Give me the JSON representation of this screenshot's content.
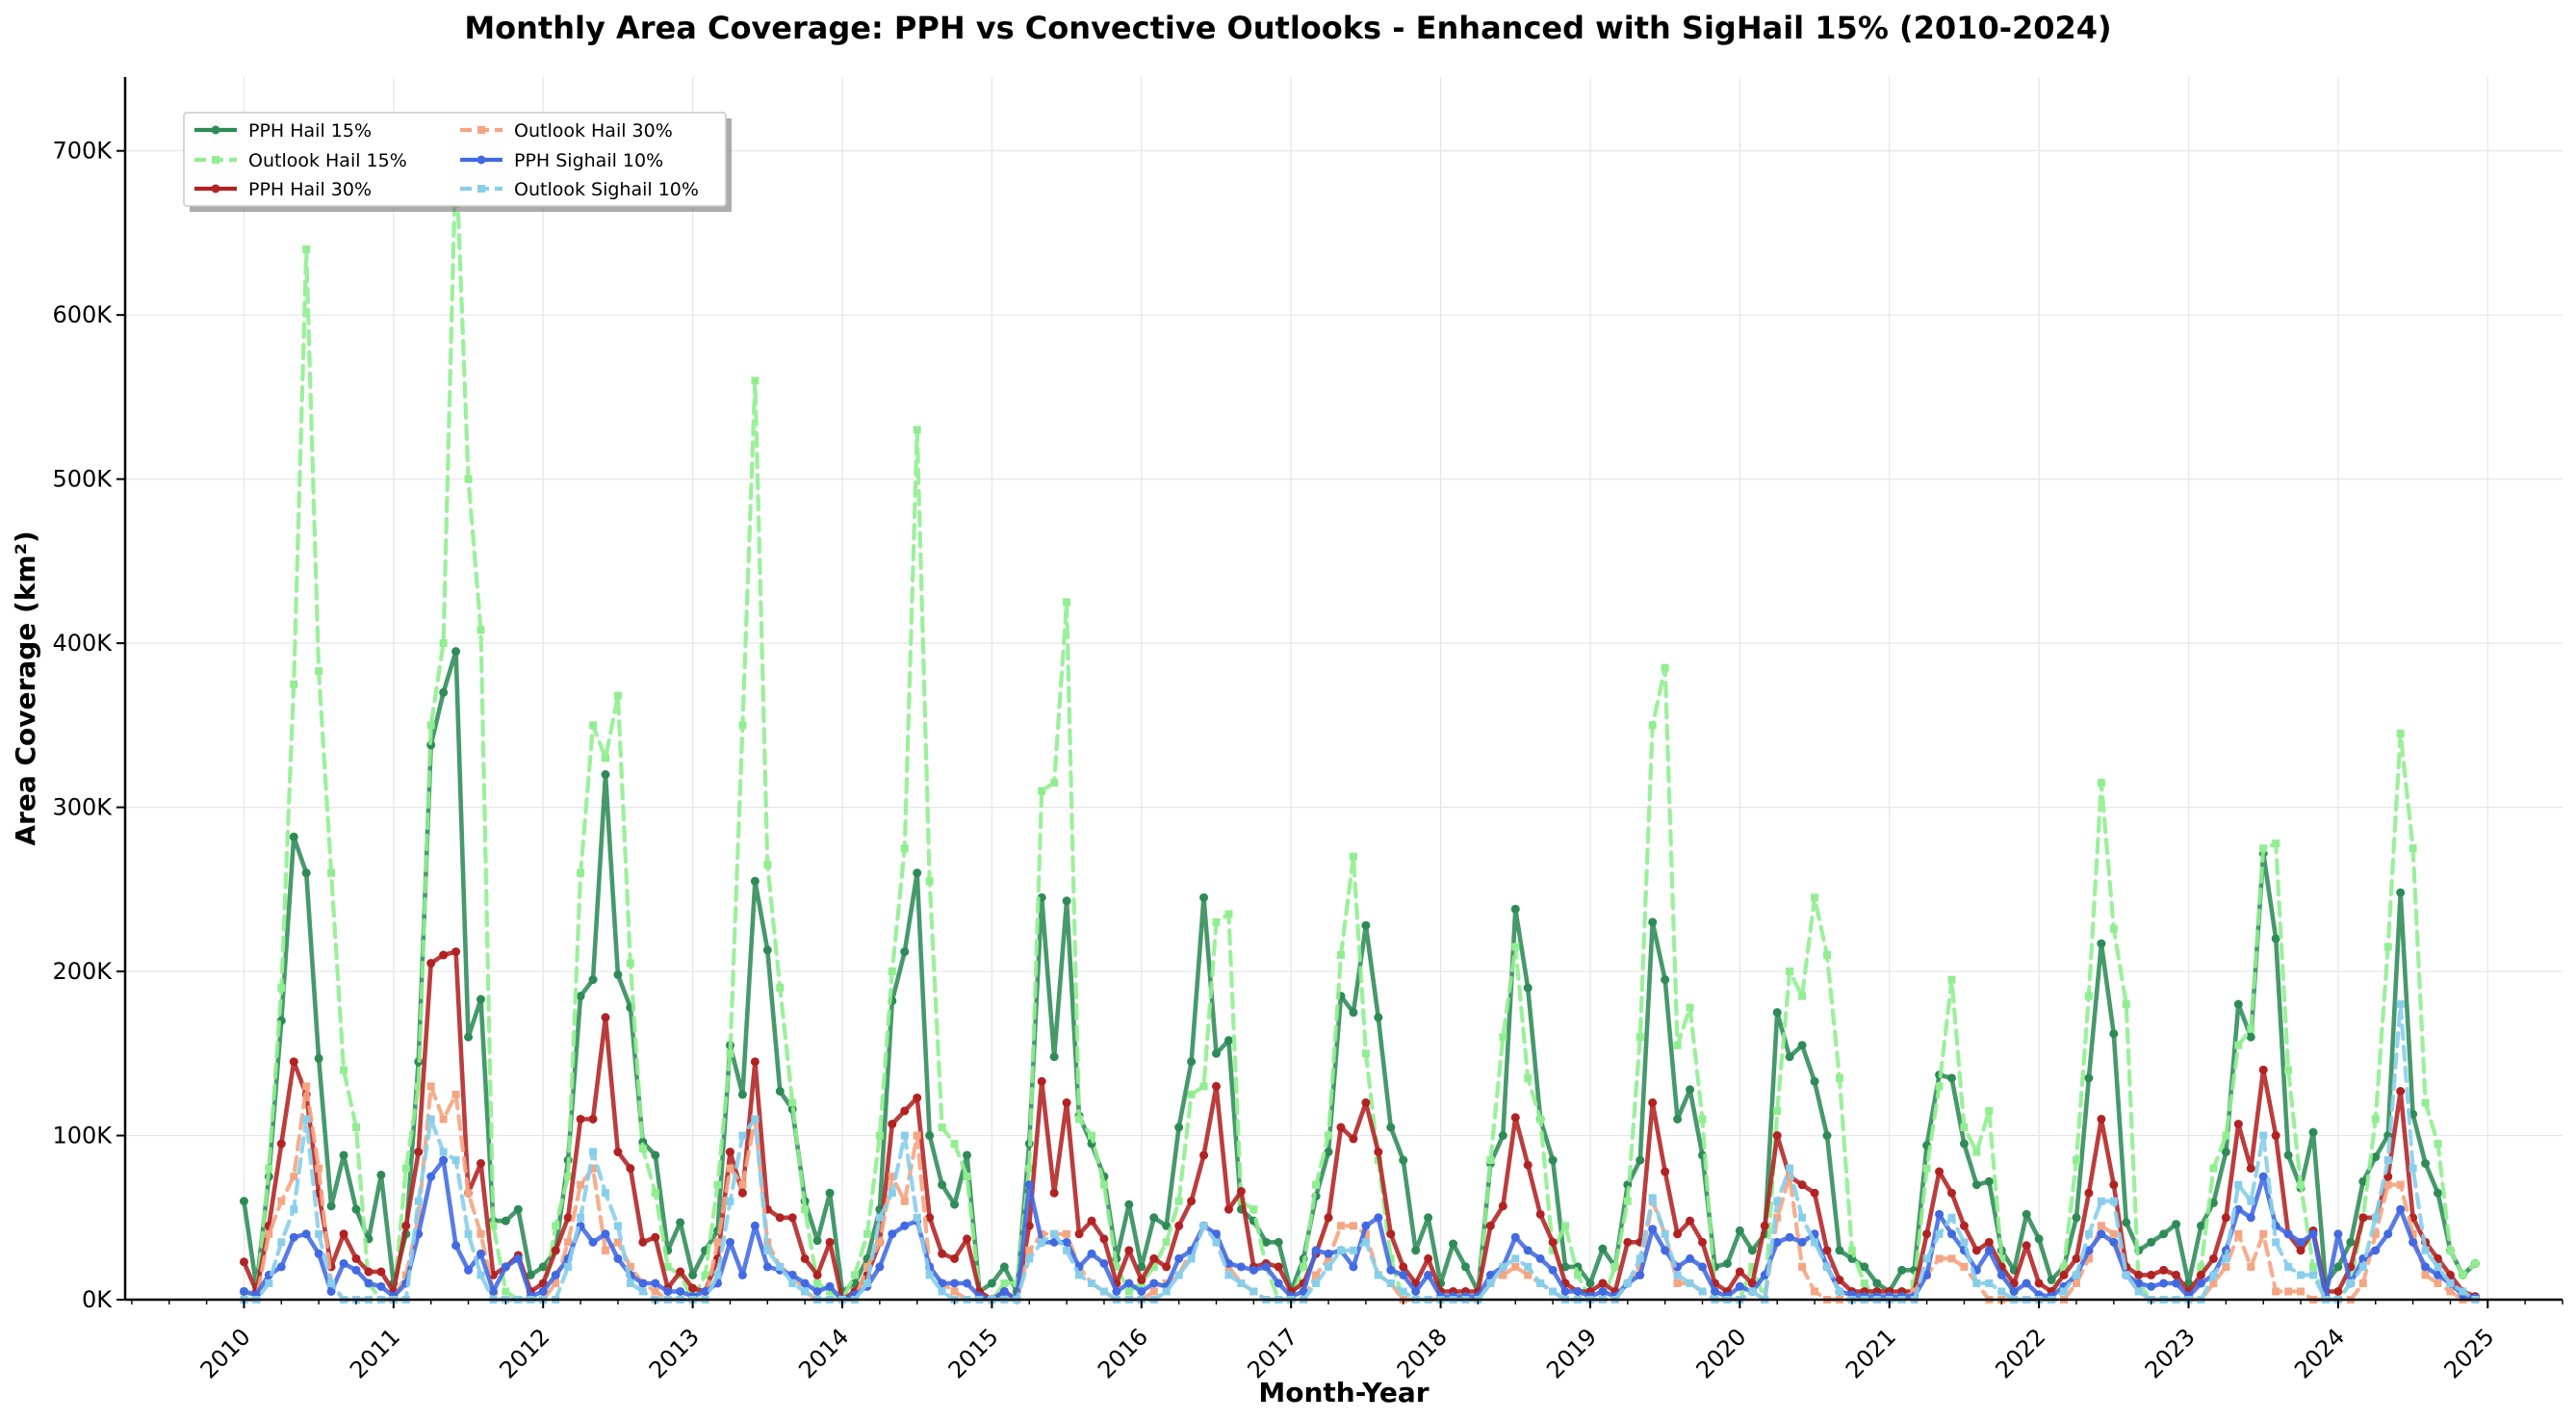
{
  "chart_data": {
    "type": "line",
    "title": "Monthly Area Coverage: PPH vs Convective Outlooks - Enhanced with SigHail 15% (2010-2024)",
    "xlabel": "Month-Year",
    "ylabel": "Area Coverage (km²)",
    "x_tick_labels": [
      "2010",
      "2011",
      "2012",
      "2013",
      "2014",
      "2015",
      "2016",
      "2017",
      "2018",
      "2019",
      "2020",
      "2021",
      "2022",
      "2023",
      "2024",
      "2025"
    ],
    "y_tick_labels": [
      "0K",
      "100K",
      "200K",
      "300K",
      "400K",
      "500K",
      "600K",
      "700K"
    ],
    "y_ticks": [
      0,
      100000,
      200000,
      300000,
      400000,
      500000,
      600000,
      700000
    ],
    "xlim": [
      "2009-03-15",
      "2025-07-01"
    ],
    "ylim": [
      0,
      745000
    ],
    "grid": true,
    "legend_position": "upper-left",
    "x_start": "2010-01",
    "x_step": "month",
    "series": [
      {
        "name": "PPH Hail 15%",
        "color": "#2e8b57",
        "style": "solid",
        "marker": "circle",
        "values": [
          60000,
          8000,
          75000,
          170000,
          282000,
          260000,
          147000,
          57000,
          88000,
          55000,
          37000,
          76000,
          10000,
          40000,
          145000,
          338000,
          370000,
          395000,
          160000,
          183000,
          48000,
          48000,
          55000,
          15000,
          20000,
          30000,
          85000,
          185000,
          195000,
          320000,
          198000,
          178000,
          96000,
          88000,
          30000,
          47000,
          15000,
          30000,
          42000,
          155000,
          125000,
          255000,
          213000,
          127000,
          116000,
          60000,
          36000,
          65000,
          5000,
          10000,
          25000,
          55000,
          182000,
          212000,
          260000,
          100000,
          70000,
          58000,
          88000,
          5000,
          10000,
          20000,
          5000,
          95000,
          245000,
          148000,
          243000,
          112000,
          95000,
          75000,
          25000,
          58000,
          20000,
          50000,
          45000,
          105000,
          145000,
          245000,
          150000,
          158000,
          55000,
          48000,
          35000,
          35000,
          5000,
          25000,
          63000,
          90000,
          185000,
          175000,
          228000,
          172000,
          105000,
          85000,
          30000,
          50000,
          10000,
          34000,
          20000,
          5000,
          83000,
          100000,
          238000,
          190000,
          110000,
          85000,
          20000,
          20000,
          10000,
          31000,
          20000,
          70000,
          85000,
          230000,
          195000,
          110000,
          128000,
          88000,
          20000,
          22000,
          42000,
          30000,
          40000,
          175000,
          148000,
          155000,
          133000,
          100000,
          30000,
          25000,
          20000,
          10000,
          5000,
          18000,
          18000,
          94000,
          137000,
          135000,
          95000,
          70000,
          72000,
          30000,
          18000,
          52000,
          37000,
          12000,
          20000,
          50000,
          135000,
          217000,
          162000,
          47000,
          30000,
          35000,
          40000,
          46000,
          10000,
          45000,
          59000,
          90000,
          180000,
          160000,
          272000,
          220000,
          88000,
          68000,
          102000,
          10000,
          20000,
          35000,
          72000,
          87000,
          100000,
          248000,
          113000,
          83000,
          65000,
          30000,
          15000,
          22000
        ]
      },
      {
        "name": "Outlook Hail 15%",
        "color": "#90ee90",
        "style": "dashed",
        "marker": "square",
        "values": [
          5000,
          2000,
          80000,
          190000,
          375000,
          640000,
          383000,
          260000,
          140000,
          105000,
          10000,
          0,
          0,
          80000,
          130000,
          350000,
          400000,
          700000,
          500000,
          408000,
          45000,
          5000,
          0,
          0,
          0,
          45000,
          75000,
          260000,
          350000,
          330000,
          368000,
          205000,
          92000,
          65000,
          20000,
          15000,
          0,
          15000,
          70000,
          150000,
          350000,
          560000,
          265000,
          190000,
          120000,
          55000,
          10000,
          5000,
          0,
          15000,
          40000,
          100000,
          200000,
          275000,
          530000,
          255000,
          105000,
          95000,
          75000,
          5000,
          0,
          10000,
          10000,
          80000,
          310000,
          315000,
          425000,
          110000,
          100000,
          70000,
          20000,
          5000,
          10000,
          20000,
          35000,
          60000,
          125000,
          130000,
          230000,
          235000,
          60000,
          55000,
          20000,
          0,
          0,
          20000,
          70000,
          100000,
          210000,
          270000,
          150000,
          85000,
          25000,
          0,
          0,
          0,
          0,
          0,
          0,
          0,
          85000,
          160000,
          215000,
          135000,
          110000,
          30000,
          45000,
          15000,
          0,
          0,
          20000,
          60000,
          160000,
          350000,
          385000,
          155000,
          178000,
          110000,
          5000,
          0,
          0,
          20000,
          0,
          115000,
          200000,
          185000,
          245000,
          210000,
          135000,
          30000,
          10000,
          0,
          0,
          0,
          10000,
          80000,
          130000,
          195000,
          105000,
          90000,
          115000,
          25000,
          0,
          0,
          0,
          0,
          20000,
          85000,
          185000,
          315000,
          226000,
          180000,
          10000,
          0,
          0,
          0,
          0,
          20000,
          80000,
          100000,
          155000,
          165000,
          275000,
          278000,
          140000,
          70000,
          20000,
          0,
          0,
          10000,
          50000,
          110000,
          215000,
          345000,
          275000,
          120000,
          95000,
          30000,
          15000,
          22000
        ]
      },
      {
        "name": "PPH Hail 30%",
        "color": "#b22222",
        "style": "solid",
        "marker": "circle",
        "values": [
          23000,
          5000,
          45000,
          95000,
          145000,
          125000,
          65000,
          20000,
          40000,
          25000,
          17000,
          17000,
          5000,
          45000,
          90000,
          205000,
          210000,
          212000,
          65000,
          83000,
          15000,
          20000,
          27000,
          5000,
          10000,
          30000,
          50000,
          110000,
          110000,
          172000,
          90000,
          80000,
          35000,
          38000,
          7000,
          17000,
          7000,
          5000,
          25000,
          90000,
          65000,
          145000,
          55000,
          50000,
          50000,
          25000,
          15000,
          35000,
          0,
          5000,
          15000,
          35000,
          107000,
          115000,
          123000,
          50000,
          28000,
          25000,
          37000,
          5000,
          0,
          5000,
          0,
          45000,
          133000,
          65000,
          120000,
          40000,
          48000,
          37000,
          10000,
          30000,
          12000,
          25000,
          20000,
          45000,
          60000,
          88000,
          130000,
          55000,
          66000,
          20000,
          22000,
          20000,
          5000,
          10000,
          28000,
          50000,
          105000,
          98000,
          120000,
          90000,
          40000,
          20000,
          10000,
          25000,
          5000,
          5000,
          5000,
          5000,
          45000,
          57000,
          111000,
          82000,
          52000,
          35000,
          10000,
          5000,
          5000,
          10000,
          5000,
          35000,
          35000,
          120000,
          78000,
          40000,
          48000,
          35000,
          10000,
          5000,
          17000,
          10000,
          45000,
          100000,
          75000,
          70000,
          65000,
          30000,
          12000,
          5000,
          5000,
          5000,
          5000,
          5000,
          5000,
          40000,
          78000,
          65000,
          45000,
          30000,
          35000,
          20000,
          10000,
          33000,
          10000,
          5000,
          15000,
          25000,
          65000,
          110000,
          70000,
          20000,
          15000,
          15000,
          18000,
          15000,
          5000,
          15000,
          25000,
          50000,
          107000,
          80000,
          140000,
          100000,
          40000,
          30000,
          42000,
          5000,
          5000,
          20000,
          50000,
          50000,
          75000,
          127000,
          50000,
          35000,
          25000,
          15000,
          5000,
          2000
        ]
      },
      {
        "name": "Outlook Hail 30%",
        "color": "#f4a582",
        "style": "dashed",
        "marker": "square",
        "values": [
          0,
          0,
          40000,
          60000,
          75000,
          130000,
          80000,
          10000,
          0,
          0,
          0,
          0,
          0,
          15000,
          50000,
          130000,
          110000,
          125000,
          65000,
          40000,
          5000,
          0,
          0,
          0,
          0,
          10000,
          35000,
          70000,
          80000,
          30000,
          35000,
          20000,
          10000,
          5000,
          0,
          0,
          0,
          0,
          35000,
          80000,
          70000,
          110000,
          35000,
          20000,
          15000,
          5000,
          0,
          0,
          0,
          0,
          20000,
          35000,
          75000,
          60000,
          100000,
          20000,
          10000,
          5000,
          0,
          0,
          0,
          0,
          0,
          30000,
          40000,
          40000,
          40000,
          20000,
          10000,
          5000,
          0,
          0,
          0,
          5000,
          10000,
          15000,
          30000,
          45000,
          40000,
          20000,
          10000,
          5000,
          0,
          0,
          0,
          0,
          15000,
          25000,
          45000,
          45000,
          40000,
          15000,
          10000,
          0,
          0,
          0,
          0,
          0,
          0,
          0,
          10000,
          15000,
          20000,
          15000,
          10000,
          5000,
          0,
          0,
          0,
          0,
          0,
          10000,
          20000,
          60000,
          40000,
          10000,
          10000,
          5000,
          0,
          0,
          0,
          5000,
          0,
          50000,
          75000,
          20000,
          5000,
          0,
          0,
          0,
          0,
          0,
          0,
          0,
          5000,
          15000,
          25000,
          25000,
          20000,
          10000,
          0,
          0,
          0,
          0,
          0,
          0,
          0,
          10000,
          25000,
          45000,
          40000,
          15000,
          5000,
          0,
          0,
          0,
          0,
          0,
          10000,
          20000,
          40000,
          20000,
          40000,
          5000,
          5000,
          5000,
          0,
          0,
          0,
          0,
          10000,
          40000,
          70000,
          70000,
          40000,
          15000,
          10000,
          5000,
          0,
          0
        ]
      },
      {
        "name": "PPH Sighail 10%",
        "color": "#4169e1",
        "style": "solid",
        "marker": "circle",
        "values": [
          5000,
          3000,
          15000,
          20000,
          38000,
          40000,
          28000,
          5000,
          22000,
          18000,
          10000,
          8000,
          2000,
          10000,
          40000,
          75000,
          85000,
          33000,
          18000,
          28000,
          5000,
          20000,
          25000,
          2000,
          5000,
          15000,
          25000,
          45000,
          35000,
          40000,
          25000,
          15000,
          10000,
          10000,
          5000,
          5000,
          2000,
          5000,
          10000,
          35000,
          15000,
          45000,
          20000,
          18000,
          15000,
          10000,
          5000,
          8000,
          0,
          3000,
          8000,
          20000,
          40000,
          45000,
          48000,
          20000,
          10000,
          10000,
          10000,
          2000,
          0,
          5000,
          0,
          70000,
          35000,
          35000,
          35000,
          20000,
          28000,
          22000,
          5000,
          10000,
          5000,
          10000,
          8000,
          25000,
          30000,
          45000,
          40000,
          22000,
          20000,
          18000,
          20000,
          10000,
          2000,
          5000,
          30000,
          28000,
          30000,
          20000,
          45000,
          50000,
          18000,
          15000,
          5000,
          15000,
          2000,
          2000,
          2000,
          2000,
          15000,
          20000,
          38000,
          30000,
          25000,
          18000,
          5000,
          5000,
          2000,
          5000,
          2000,
          10000,
          15000,
          43000,
          30000,
          20000,
          25000,
          20000,
          5000,
          2000,
          8000,
          5000,
          15000,
          35000,
          38000,
          35000,
          40000,
          20000,
          5000,
          3000,
          2000,
          2000,
          2000,
          2000,
          2000,
          15000,
          52000,
          40000,
          30000,
          18000,
          30000,
          15000,
          5000,
          10000,
          3000,
          2000,
          8000,
          15000,
          30000,
          40000,
          35000,
          15000,
          10000,
          8000,
          10000,
          10000,
          2000,
          10000,
          15000,
          30000,
          55000,
          50000,
          75000,
          45000,
          40000,
          35000,
          40000,
          2000,
          40000,
          10000,
          25000,
          30000,
          40000,
          55000,
          35000,
          20000,
          15000,
          10000,
          3000,
          1000
        ]
      },
      {
        "name": "Outlook Sighail 10%",
        "color": "#87ceeb",
        "style": "dashed",
        "marker": "square",
        "values": [
          0,
          0,
          10000,
          35000,
          55000,
          110000,
          40000,
          10000,
          0,
          0,
          0,
          0,
          0,
          0,
          60000,
          110000,
          90000,
          85000,
          40000,
          15000,
          0,
          0,
          0,
          0,
          0,
          0,
          20000,
          50000,
          90000,
          65000,
          45000,
          10000,
          5000,
          0,
          0,
          0,
          0,
          0,
          15000,
          60000,
          100000,
          110000,
          30000,
          20000,
          10000,
          5000,
          0,
          0,
          0,
          0,
          10000,
          50000,
          65000,
          100000,
          50000,
          15000,
          5000,
          0,
          0,
          0,
          0,
          0,
          0,
          25000,
          35000,
          40000,
          30000,
          15000,
          10000,
          5000,
          0,
          0,
          0,
          0,
          5000,
          15000,
          25000,
          45000,
          35000,
          15000,
          10000,
          5000,
          0,
          0,
          0,
          0,
          10000,
          20000,
          30000,
          30000,
          35000,
          15000,
          10000,
          5000,
          0,
          0,
          0,
          0,
          0,
          0,
          10000,
          20000,
          25000,
          20000,
          10000,
          5000,
          0,
          0,
          0,
          0,
          0,
          10000,
          25000,
          62000,
          40000,
          15000,
          10000,
          5000,
          0,
          0,
          0,
          5000,
          0,
          60000,
          80000,
          50000,
          35000,
          20000,
          5000,
          0,
          0,
          0,
          0,
          0,
          0,
          25000,
          40000,
          50000,
          35000,
          10000,
          10000,
          5000,
          0,
          0,
          0,
          0,
          5000,
          15000,
          40000,
          60000,
          60000,
          15000,
          5000,
          0,
          0,
          0,
          0,
          0,
          15000,
          25000,
          70000,
          60000,
          100000,
          35000,
          20000,
          15000,
          15000,
          0,
          0,
          10000,
          20000,
          50000,
          85000,
          180000,
          80000,
          30000,
          20000,
          10000,
          5000,
          0
        ]
      }
    ]
  }
}
